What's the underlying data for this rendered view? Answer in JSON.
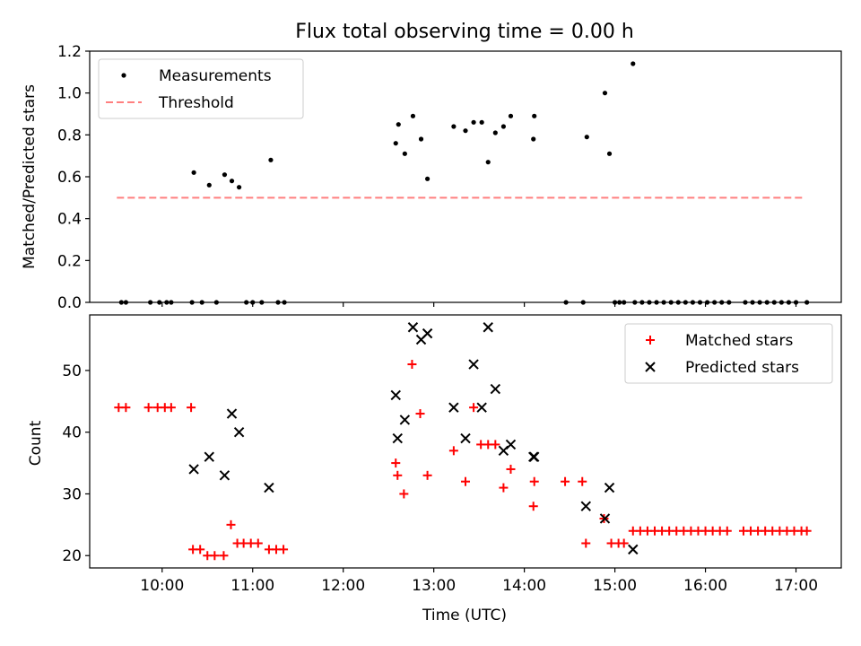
{
  "chart_data": [
    {
      "type": "scatter",
      "title": "Flux total observing time = 0.00 h",
      "xlabel": "",
      "ylabel": "Matched/Predicted stars",
      "xlim": [
        9.2,
        17.5
      ],
      "ylim": [
        0,
        1.2
      ],
      "yticks": [
        0.0,
        0.2,
        0.4,
        0.6,
        0.8,
        1.0,
        1.2
      ],
      "ytick_labels": [
        "0.0",
        "0.2",
        "0.4",
        "0.6",
        "0.8",
        "1.0",
        "1.2"
      ],
      "xticks": [
        10,
        11,
        12,
        13,
        14,
        15,
        16,
        17
      ],
      "legend": {
        "position": "top-left",
        "entries": [
          "Measurements",
          "Threshold"
        ]
      },
      "series": [
        {
          "name": "Measurements",
          "color": "#000000",
          "marker": "dot",
          "points": [
            [
              9.55,
              0
            ],
            [
              9.6,
              0
            ],
            [
              9.87,
              0
            ],
            [
              9.97,
              0
            ],
            [
              10.05,
              0
            ],
            [
              10.1,
              0
            ],
            [
              10.33,
              0
            ],
            [
              10.44,
              0
            ],
            [
              10.6,
              0
            ],
            [
              10.35,
              0.62
            ],
            [
              10.52,
              0.56
            ],
            [
              10.69,
              0.61
            ],
            [
              10.77,
              0.58
            ],
            [
              10.85,
              0.55
            ],
            [
              11.2,
              0.68
            ],
            [
              10.93,
              0
            ],
            [
              11.0,
              0
            ],
            [
              11.1,
              0
            ],
            [
              11.28,
              0
            ],
            [
              11.35,
              0
            ],
            [
              12.58,
              0.76
            ],
            [
              12.61,
              0.85
            ],
            [
              12.68,
              0.71
            ],
            [
              12.77,
              0.89
            ],
            [
              12.86,
              0.78
            ],
            [
              12.93,
              0.59
            ],
            [
              13.22,
              0.84
            ],
            [
              13.35,
              0.82
            ],
            [
              13.44,
              0.86
            ],
            [
              13.53,
              0.86
            ],
            [
              13.6,
              0.67
            ],
            [
              13.68,
              0.81
            ],
            [
              13.77,
              0.84
            ],
            [
              13.85,
              0.89
            ],
            [
              14.1,
              0.78
            ],
            [
              14.11,
              0.89
            ],
            [
              14.46,
              0
            ],
            [
              14.65,
              0
            ],
            [
              14.69,
              0.79
            ],
            [
              14.89,
              1.0
            ],
            [
              14.94,
              0.71
            ],
            [
              15.2,
              1.14
            ],
            [
              15.0,
              0
            ],
            [
              15.05,
              0
            ],
            [
              15.1,
              0
            ],
            [
              15.22,
              0
            ],
            [
              15.3,
              0
            ],
            [
              15.38,
              0
            ],
            [
              15.46,
              0
            ],
            [
              15.54,
              0
            ],
            [
              15.62,
              0
            ],
            [
              15.7,
              0
            ],
            [
              15.78,
              0
            ],
            [
              15.86,
              0
            ],
            [
              15.94,
              0
            ],
            [
              16.02,
              0
            ],
            [
              16.1,
              0
            ],
            [
              16.18,
              0
            ],
            [
              16.26,
              0
            ],
            [
              16.44,
              0
            ],
            [
              16.52,
              0
            ],
            [
              16.6,
              0
            ],
            [
              16.68,
              0
            ],
            [
              16.76,
              0
            ],
            [
              16.84,
              0
            ],
            [
              16.92,
              0
            ],
            [
              17.0,
              0
            ],
            [
              17.12,
              0
            ]
          ]
        },
        {
          "name": "Threshold",
          "color": "#ff7f7f",
          "style": "dashed",
          "x": [
            9.5,
            17.1
          ],
          "values": [
            0.5,
            0.5
          ]
        }
      ]
    },
    {
      "type": "scatter",
      "title": "",
      "xlabel": "Time (UTC)",
      "ylabel": "Count",
      "xlim": [
        9.2,
        17.5
      ],
      "ylim": [
        18,
        59
      ],
      "yticks": [
        20,
        30,
        40,
        50
      ],
      "ytick_labels": [
        "20",
        "30",
        "40",
        "50"
      ],
      "xticks": [
        10,
        11,
        12,
        13,
        14,
        15,
        16,
        17
      ],
      "xtick_labels": [
        "10:00",
        "11:00",
        "12:00",
        "13:00",
        "14:00",
        "15:00",
        "16:00",
        "17:00"
      ],
      "legend": {
        "position": "top-right",
        "entries": [
          "Matched stars",
          "Predicted stars"
        ]
      },
      "series": [
        {
          "name": "Matched stars",
          "color": "#ff0000",
          "marker": "plus",
          "points": [
            [
              9.52,
              44
            ],
            [
              9.6,
              44
            ],
            [
              9.85,
              44
            ],
            [
              9.95,
              44
            ],
            [
              10.03,
              44
            ],
            [
              10.1,
              44
            ],
            [
              10.32,
              44
            ],
            [
              10.34,
              21
            ],
            [
              10.42,
              21
            ],
            [
              10.5,
              20
            ],
            [
              10.58,
              20
            ],
            [
              10.68,
              20
            ],
            [
              10.76,
              25
            ],
            [
              10.83,
              22
            ],
            [
              10.9,
              22
            ],
            [
              10.98,
              22
            ],
            [
              11.06,
              22
            ],
            [
              11.18,
              21
            ],
            [
              11.26,
              21
            ],
            [
              11.34,
              21
            ],
            [
              12.58,
              35
            ],
            [
              12.6,
              33
            ],
            [
              12.67,
              30
            ],
            [
              12.76,
              51
            ],
            [
              12.85,
              43
            ],
            [
              12.93,
              33
            ],
            [
              13.22,
              37
            ],
            [
              13.35,
              32
            ],
            [
              13.44,
              44
            ],
            [
              13.52,
              38
            ],
            [
              13.6,
              38
            ],
            [
              13.68,
              38
            ],
            [
              13.77,
              31
            ],
            [
              13.85,
              34
            ],
            [
              14.1,
              28
            ],
            [
              14.11,
              32
            ],
            [
              14.45,
              32
            ],
            [
              14.64,
              32
            ],
            [
              14.68,
              22
            ],
            [
              14.88,
              26
            ],
            [
              14.96,
              22
            ],
            [
              15.04,
              22
            ],
            [
              15.1,
              22
            ],
            [
              15.2,
              24
            ],
            [
              15.28,
              24
            ],
            [
              15.36,
              24
            ],
            [
              15.44,
              24
            ],
            [
              15.52,
              24
            ],
            [
              15.6,
              24
            ],
            [
              15.68,
              24
            ],
            [
              15.76,
              24
            ],
            [
              15.84,
              24
            ],
            [
              15.92,
              24
            ],
            [
              16.0,
              24
            ],
            [
              16.08,
              24
            ],
            [
              16.16,
              24
            ],
            [
              16.24,
              24
            ],
            [
              16.42,
              24
            ],
            [
              16.5,
              24
            ],
            [
              16.58,
              24
            ],
            [
              16.66,
              24
            ],
            [
              16.74,
              24
            ],
            [
              16.82,
              24
            ],
            [
              16.9,
              24
            ],
            [
              16.98,
              24
            ],
            [
              17.06,
              24
            ],
            [
              17.12,
              24
            ]
          ]
        },
        {
          "name": "Predicted stars",
          "color": "#000000",
          "marker": "x",
          "points": [
            [
              10.35,
              34
            ],
            [
              10.52,
              36
            ],
            [
              10.69,
              33
            ],
            [
              10.77,
              43
            ],
            [
              10.85,
              40
            ],
            [
              11.18,
              31
            ],
            [
              12.58,
              46
            ],
            [
              12.6,
              39
            ],
            [
              12.68,
              42
            ],
            [
              12.77,
              57
            ],
            [
              12.86,
              55
            ],
            [
              12.93,
              56
            ],
            [
              13.22,
              44
            ],
            [
              13.35,
              39
            ],
            [
              13.44,
              51
            ],
            [
              13.53,
              44
            ],
            [
              13.6,
              57
            ],
            [
              13.68,
              47
            ],
            [
              13.77,
              37
            ],
            [
              13.85,
              38
            ],
            [
              14.1,
              36
            ],
            [
              14.11,
              36
            ],
            [
              14.68,
              28
            ],
            [
              14.89,
              26
            ],
            [
              14.94,
              31
            ],
            [
              15.2,
              21
            ]
          ]
        }
      ]
    }
  ]
}
